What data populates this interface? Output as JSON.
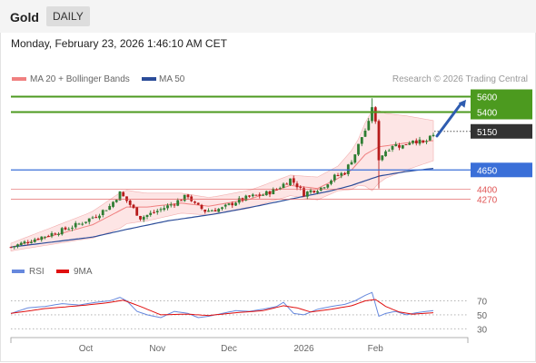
{
  "header": {
    "instrument": "Gold",
    "period": "DAILY"
  },
  "timestamp": "Monday, February 23, 2026 1:46:10 AM CET",
  "copyright": "Research © 2026 Trading Central",
  "colors": {
    "up": "#2e7d32",
    "down": "#b71c1c",
    "resistance": "#4c9a1f",
    "support": "#3a6fd8",
    "pivot": "#333333",
    "minor_support": "#e05555",
    "arrow": "#2e5cb0",
    "ma20": "#f08080",
    "ma50": "#2b4c99",
    "rsi": "#6688dd",
    "rsi_ma": "#e01010",
    "band_fill": "#fcdcdc"
  },
  "chart_data": [
    {
      "type": "candlestick",
      "title": "Gold DAILY",
      "legend": [
        {
          "name": "MA 20 + Bollinger Bands",
          "color": "#f08080"
        },
        {
          "name": "MA 50",
          "color": "#2b4c99"
        }
      ],
      "x_tick_labels": [
        "Oct",
        "Nov",
        "Dec",
        "2026",
        "Feb"
      ],
      "ylim": [
        3630,
        5700
      ],
      "levels": [
        {
          "label": "5600",
          "value": 5600,
          "kind": "resistance"
        },
        {
          "label": "5400",
          "value": 5400,
          "kind": "resistance"
        },
        {
          "label": "5150",
          "value": 5150,
          "kind": "pivot"
        },
        {
          "label": "4650",
          "value": 4650,
          "kind": "support"
        },
        {
          "label": "4400",
          "value": 4400,
          "kind": "minor_support"
        },
        {
          "label": "4270",
          "value": 4270,
          "kind": "minor_support"
        }
      ],
      "forecast_arrow": {
        "from_value": 5090,
        "to_value": 5560
      },
      "waypoints": [
        [
          0,
          3650
        ],
        [
          8,
          3770
        ],
        [
          14,
          3850
        ],
        [
          20,
          3950
        ],
        [
          25,
          4060
        ],
        [
          29,
          4180
        ],
        [
          32,
          4350
        ],
        [
          35,
          4200
        ],
        [
          38,
          4030
        ],
        [
          42,
          4100
        ],
        [
          46,
          4180
        ],
        [
          50,
          4270
        ],
        [
          52,
          4320
        ],
        [
          54,
          4200
        ],
        [
          57,
          4120
        ],
        [
          62,
          4150
        ],
        [
          66,
          4240
        ],
        [
          70,
          4300
        ],
        [
          74,
          4330
        ],
        [
          78,
          4400
        ],
        [
          82,
          4530
        ],
        [
          84,
          4450
        ],
        [
          86,
          4340
        ],
        [
          88,
          4380
        ],
        [
          91,
          4420
        ],
        [
          95,
          4560
        ],
        [
          98,
          4620
        ],
        [
          101,
          4860
        ],
        [
          103,
          5080
        ],
        [
          105,
          5250
        ],
        [
          106,
          5480
        ],
        [
          107,
          5250
        ],
        [
          108,
          4800
        ],
        [
          110,
          4900
        ],
        [
          112,
          4980
        ],
        [
          115,
          4960
        ],
        [
          118,
          5050
        ],
        [
          121,
          4990
        ],
        [
          124,
          5090
        ]
      ],
      "moving_averages": {
        "ma20_waypoints": [
          [
            0,
            3650
          ],
          [
            24,
            3940
          ],
          [
            34,
            4170
          ],
          [
            40,
            4170
          ],
          [
            50,
            4220
          ],
          [
            58,
            4180
          ],
          [
            70,
            4270
          ],
          [
            82,
            4450
          ],
          [
            90,
            4410
          ],
          [
            96,
            4540
          ],
          [
            100,
            4650
          ],
          [
            104,
            4850
          ],
          [
            108,
            4950
          ],
          [
            116,
            5000
          ],
          [
            124,
            5030
          ]
        ],
        "ma50_waypoints": [
          [
            0,
            3650
          ],
          [
            24,
            3780
          ],
          [
            34,
            3880
          ],
          [
            46,
            3990
          ],
          [
            60,
            4080
          ],
          [
            72,
            4180
          ],
          [
            84,
            4290
          ],
          [
            94,
            4380
          ],
          [
            100,
            4450
          ],
          [
            108,
            4570
          ],
          [
            116,
            4630
          ],
          [
            124,
            4670
          ]
        ],
        "band_halfwidth_waypoints": [
          [
            0,
            50
          ],
          [
            22,
            160
          ],
          [
            32,
            230
          ],
          [
            38,
            190
          ],
          [
            50,
            130
          ],
          [
            60,
            110
          ],
          [
            74,
            120
          ],
          [
            86,
            140
          ],
          [
            96,
            160
          ],
          [
            102,
            300
          ],
          [
            106,
            520
          ],
          [
            110,
            420
          ],
          [
            124,
            260
          ]
        ]
      }
    },
    {
      "type": "line",
      "title": "RSI",
      "series": [
        {
          "name": "RSI",
          "color": "#6688dd"
        },
        {
          "name": "9MA",
          "color": "#e01010"
        }
      ],
      "y_ticks": [
        70,
        50,
        30
      ],
      "ylim": [
        20,
        85
      ],
      "rsi_waypoints": [
        [
          0,
          52
        ],
        [
          5,
          60
        ],
        [
          10,
          62
        ],
        [
          15,
          66
        ],
        [
          20,
          64
        ],
        [
          25,
          68
        ],
        [
          29,
          70
        ],
        [
          32,
          75
        ],
        [
          34,
          70
        ],
        [
          37,
          55
        ],
        [
          40,
          50
        ],
        [
          44,
          46
        ],
        [
          48,
          55
        ],
        [
          52,
          52
        ],
        [
          55,
          46
        ],
        [
          58,
          48
        ],
        [
          62,
          52
        ],
        [
          66,
          56
        ],
        [
          70,
          55
        ],
        [
          74,
          58
        ],
        [
          78,
          62
        ],
        [
          80,
          68
        ],
        [
          83,
          52
        ],
        [
          86,
          50
        ],
        [
          90,
          58
        ],
        [
          94,
          62
        ],
        [
          98,
          65
        ],
        [
          101,
          70
        ],
        [
          104,
          78
        ],
        [
          106,
          82
        ],
        [
          108,
          48
        ],
        [
          110,
          52
        ],
        [
          113,
          55
        ],
        [
          116,
          50
        ],
        [
          119,
          53
        ],
        [
          122,
          55
        ],
        [
          124,
          56
        ]
      ],
      "ma9_waypoints": [
        [
          0,
          52
        ],
        [
          10,
          59
        ],
        [
          20,
          63
        ],
        [
          28,
          67
        ],
        [
          33,
          71
        ],
        [
          38,
          62
        ],
        [
          44,
          50
        ],
        [
          52,
          51
        ],
        [
          58,
          49
        ],
        [
          66,
          53
        ],
        [
          74,
          56
        ],
        [
          80,
          63
        ],
        [
          84,
          60
        ],
        [
          88,
          54
        ],
        [
          94,
          58
        ],
        [
          100,
          63
        ],
        [
          104,
          70
        ],
        [
          107,
          72
        ],
        [
          110,
          62
        ],
        [
          114,
          54
        ],
        [
          118,
          51
        ],
        [
          124,
          53
        ]
      ]
    }
  ]
}
